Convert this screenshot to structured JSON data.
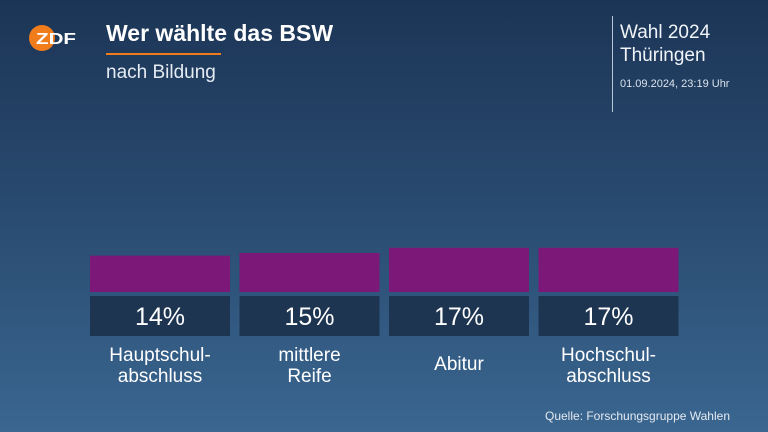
{
  "header": {
    "logo_text": "ZDF",
    "title": "Wer wählte das BSW",
    "subtitle": "nach Bildung",
    "election_line1": "Wahl 2024",
    "election_line2": "Thüringen",
    "timestamp": "01.09.2024, 23:19 Uhr"
  },
  "footer": {
    "source": "Quelle: Forschungsgruppe Wahlen"
  },
  "colors": {
    "accent": "#f07c1c",
    "bar": "#7b1878",
    "value_box": "#1e3552"
  },
  "chart_data": {
    "type": "bar",
    "title": "Wer wählte das BSW",
    "subtitle": "nach Bildung",
    "categories": [
      "Hauptschul-\nabschluss",
      "mittlere\nReife",
      "Abitur",
      "Hochschul-\nabschluss"
    ],
    "values": [
      14,
      15,
      17,
      17
    ],
    "value_labels": [
      "14%",
      "15%",
      "17%",
      "17%"
    ],
    "unit": "%",
    "grid": false,
    "legend": "none"
  }
}
